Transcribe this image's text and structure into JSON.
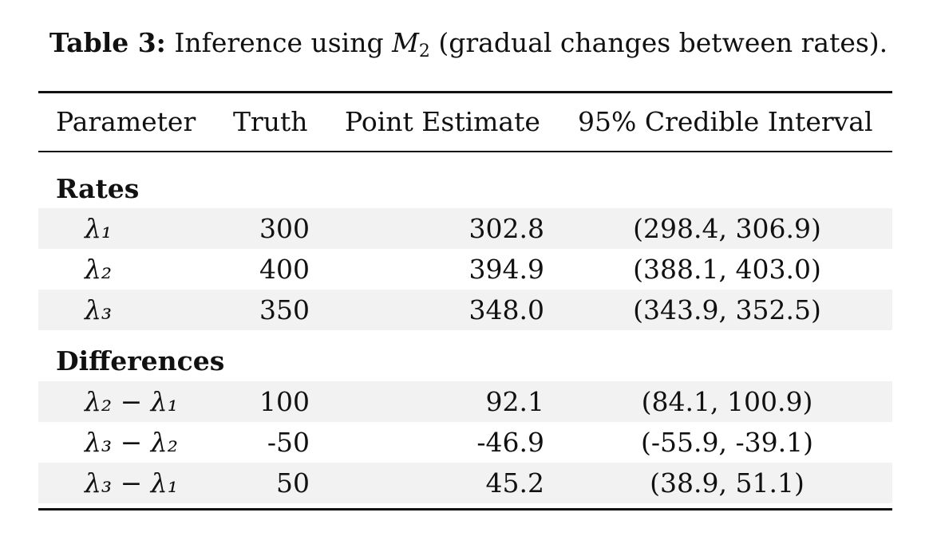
{
  "caption": {
    "label": "Table 3:",
    "text_before": "Inference using ",
    "model_symbol": "M",
    "model_subscript": "2",
    "text_after": " (gradual changes between rates)."
  },
  "table": {
    "headers": {
      "parameter": "Parameter",
      "truth": "Truth",
      "estimate": "Point Estimate",
      "interval": "95% Credible Interval"
    },
    "sections": [
      {
        "title": "Rates",
        "rows": [
          {
            "parameter": "λ₁",
            "truth": "300",
            "estimate": "302.8",
            "interval": "(298.4, 306.9)"
          },
          {
            "parameter": "λ₂",
            "truth": "400",
            "estimate": "394.9",
            "interval": "(388.1, 403.0)"
          },
          {
            "parameter": "λ₃",
            "truth": "350",
            "estimate": "348.0",
            "interval": "(343.9, 352.5)"
          }
        ]
      },
      {
        "title": "Differences",
        "rows": [
          {
            "parameter": "λ₂ − λ₁",
            "truth": "100",
            "estimate": "92.1",
            "interval": "(84.1, 100.9)"
          },
          {
            "parameter": "λ₃ − λ₂",
            "truth": "-50",
            "estimate": "-46.9",
            "interval": "(-55.9, -39.1)"
          },
          {
            "parameter": "λ₃ − λ₁",
            "truth": "50",
            "estimate": "45.2",
            "interval": "(38.9, 51.1)"
          }
        ]
      }
    ]
  }
}
